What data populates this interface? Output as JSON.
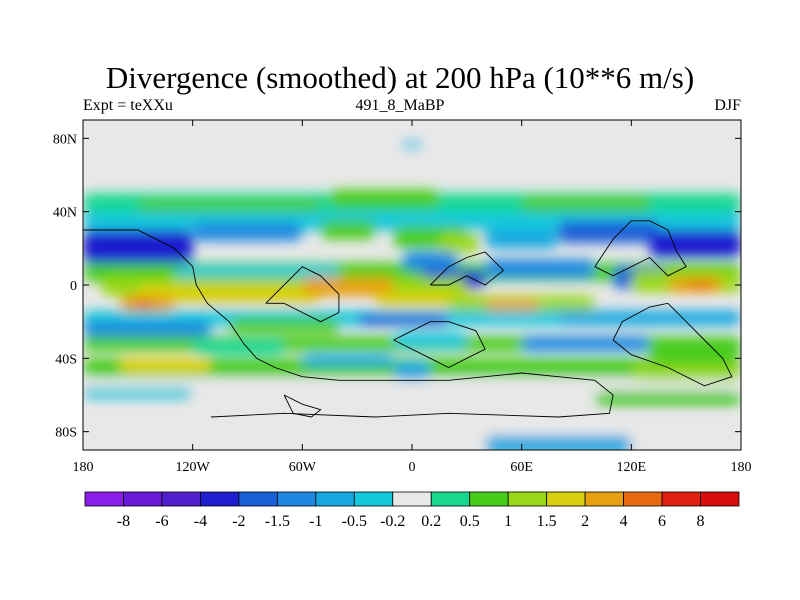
{
  "title": "Divergence (smoothed) at 200 hPa (10**6 m/s)",
  "subtitle_left": "Expt = teXXu",
  "subtitle_center": "491_8_MaBP",
  "subtitle_right": "DJF",
  "chart_data": {
    "type": "heatmap",
    "title": "Divergence (smoothed) at 200 hPa (10**6 m/s)",
    "xlim": [
      -180,
      180
    ],
    "ylim": [
      -90,
      90
    ],
    "x_ticks": [
      {
        "value": -180,
        "label": "180"
      },
      {
        "value": -120,
        "label": "120W"
      },
      {
        "value": -60,
        "label": "60W"
      },
      {
        "value": 0,
        "label": "0"
      },
      {
        "value": 60,
        "label": "60E"
      },
      {
        "value": 120,
        "label": "120E"
      },
      {
        "value": 180,
        "label": "180"
      }
    ],
    "y_ticks": [
      {
        "value": 80,
        "label": "80N"
      },
      {
        "value": 40,
        "label": "40N"
      },
      {
        "value": 0,
        "label": "0"
      },
      {
        "value": -40,
        "label": "40S"
      },
      {
        "value": -80,
        "label": "80S"
      }
    ],
    "colorbar": {
      "levels": [
        "-8",
        "-6",
        "-4",
        "-2",
        "-1.5",
        "-1",
        "-0.5",
        "-0.2",
        "0.2",
        "0.5",
        "1",
        "1.5",
        "2",
        "4",
        "6",
        "8"
      ],
      "colors": [
        "#8a1ee8",
        "#6a18d8",
        "#5020cc",
        "#1e1ecf",
        "#1a5ed8",
        "#1e88e0",
        "#18a8e0",
        "#16c8dc",
        "#e8e8e8",
        "#18d890",
        "#48cc1a",
        "#98d818",
        "#d8d00e",
        "#e8a010",
        "#e86a10",
        "#e02010",
        "#d80c0c"
      ]
    },
    "regions": [
      {
        "lon": -180,
        "lat": 50,
        "w": 360,
        "h": 10,
        "v": 0.4
      },
      {
        "lon": -150,
        "lat": 46,
        "w": 100,
        "h": 10,
        "v": 0.8
      },
      {
        "lon": -45,
        "lat": 52,
        "w": 60,
        "h": 10,
        "v": 0.9
      },
      {
        "lon": 60,
        "lat": 48,
        "w": 70,
        "h": 10,
        "v": 0.7
      },
      {
        "lon": -180,
        "lat": 40,
        "w": 360,
        "h": 10,
        "v": -0.3
      },
      {
        "lon": -180,
        "lat": 30,
        "w": 60,
        "h": 18,
        "v": -2.5
      },
      {
        "lon": -120,
        "lat": 34,
        "w": 60,
        "h": 10,
        "v": -1.2
      },
      {
        "lon": -50,
        "lat": 35,
        "w": 30,
        "h": 10,
        "v": 0.8
      },
      {
        "lon": -10,
        "lat": 32,
        "w": 40,
        "h": 12,
        "v": 0.6
      },
      {
        "lon": 15,
        "lat": 28,
        "w": 22,
        "h": 10,
        "v": 1.2
      },
      {
        "lon": 40,
        "lat": 30,
        "w": 40,
        "h": 10,
        "v": -0.6
      },
      {
        "lon": 80,
        "lat": 35,
        "w": 55,
        "h": 12,
        "v": -1.8
      },
      {
        "lon": 130,
        "lat": 30,
        "w": 50,
        "h": 15,
        "v": -2.5
      },
      {
        "lon": -180,
        "lat": 12,
        "w": 360,
        "h": 10,
        "v": 0.6
      },
      {
        "lon": -130,
        "lat": 10,
        "w": 90,
        "h": 10,
        "v": -0.4
      },
      {
        "lon": -5,
        "lat": 18,
        "w": 30,
        "h": 10,
        "v": -1.5
      },
      {
        "lon": 5,
        "lat": 8,
        "w": 35,
        "h": 10,
        "v": -3.2
      },
      {
        "lon": 40,
        "lat": 14,
        "w": 60,
        "h": 10,
        "v": -1.2
      },
      {
        "lon": 110,
        "lat": 10,
        "w": 30,
        "h": 12,
        "v": -1.6
      },
      {
        "lon": 120,
        "lat": 8,
        "w": 60,
        "h": 12,
        "v": 1.2
      },
      {
        "lon": 140,
        "lat": 4,
        "w": 30,
        "h": 8,
        "v": 2.5
      },
      {
        "lon": 150,
        "lat": 2,
        "w": 15,
        "h": 4,
        "v": 5.5
      },
      {
        "lon": -170,
        "lat": 4,
        "w": 200,
        "h": 10,
        "v": 1.4
      },
      {
        "lon": -150,
        "lat": 0,
        "w": 100,
        "h": 10,
        "v": 1.8
      },
      {
        "lon": -160,
        "lat": -6,
        "w": 30,
        "h": 8,
        "v": 2.5
      },
      {
        "lon": -152,
        "lat": -8,
        "w": 10,
        "h": 5,
        "v": 5.5
      },
      {
        "lon": -60,
        "lat": 4,
        "w": 50,
        "h": 10,
        "v": 2.6
      },
      {
        "lon": -20,
        "lat": -4,
        "w": 60,
        "h": 8,
        "v": 1.6
      },
      {
        "lon": 20,
        "lat": -6,
        "w": 80,
        "h": 8,
        "v": 1.2
      },
      {
        "lon": 40,
        "lat": -8,
        "w": 30,
        "h": 6,
        "v": 2.4
      },
      {
        "lon": -180,
        "lat": -14,
        "w": 360,
        "h": 8,
        "v": -0.3
      },
      {
        "lon": -180,
        "lat": -20,
        "w": 70,
        "h": 8,
        "v": -1.2
      },
      {
        "lon": -100,
        "lat": -18,
        "w": 60,
        "h": 8,
        "v": 0.6
      },
      {
        "lon": -30,
        "lat": -16,
        "w": 50,
        "h": 6,
        "v": -1.8
      },
      {
        "lon": 80,
        "lat": -14,
        "w": 100,
        "h": 8,
        "v": -0.8
      },
      {
        "lon": -180,
        "lat": -28,
        "w": 360,
        "h": 8,
        "v": 0.7
      },
      {
        "lon": -120,
        "lat": -30,
        "w": 50,
        "h": 8,
        "v": 0.4
      },
      {
        "lon": -10,
        "lat": -26,
        "w": 40,
        "h": 8,
        "v": -0.4
      },
      {
        "lon": 60,
        "lat": -28,
        "w": 70,
        "h": 8,
        "v": -1.1
      },
      {
        "lon": 130,
        "lat": -30,
        "w": 50,
        "h": 10,
        "v": 0.6
      },
      {
        "lon": -180,
        "lat": -40,
        "w": 360,
        "h": 10,
        "v": 0.5
      },
      {
        "lon": -160,
        "lat": -40,
        "w": 50,
        "h": 8,
        "v": 1.6
      },
      {
        "lon": -60,
        "lat": -38,
        "w": 50,
        "h": 6,
        "v": -0.6
      },
      {
        "lon": -10,
        "lat": -42,
        "w": 20,
        "h": 10,
        "v": -0.8
      },
      {
        "lon": 60,
        "lat": -40,
        "w": 60,
        "h": 8,
        "v": 0.8
      },
      {
        "lon": 120,
        "lat": -44,
        "w": 60,
        "h": 8,
        "v": 1.1
      },
      {
        "lon": -180,
        "lat": -52,
        "w": 360,
        "h": 10,
        "v": 0.0
      },
      {
        "lon": -180,
        "lat": -56,
        "w": 60,
        "h": 6,
        "v": -0.4
      },
      {
        "lon": 100,
        "lat": -58,
        "w": 80,
        "h": 8,
        "v": 0.6
      },
      {
        "lon": -180,
        "lat": -72,
        "w": 360,
        "h": 18,
        "v": 0.0
      },
      {
        "lon": 40,
        "lat": -82,
        "w": 80,
        "h": 10,
        "v": -0.8
      },
      {
        "lon": -5,
        "lat": 78,
        "w": 10,
        "h": 3,
        "v": -0.6
      }
    ]
  },
  "map": {
    "coastlines": [
      [
        [
          -180,
          30
        ],
        [
          -150,
          30
        ],
        [
          -130,
          20
        ],
        [
          -120,
          10
        ],
        [
          -118,
          0
        ],
        [
          -112,
          -10
        ],
        [
          -100,
          -20
        ],
        [
          -92,
          -32
        ],
        [
          -85,
          -40
        ],
        [
          -75,
          -45
        ],
        [
          -60,
          -50
        ],
        [
          -40,
          -52
        ],
        [
          -20,
          -52
        ],
        [
          20,
          -52
        ],
        [
          60,
          -48
        ],
        [
          80,
          -50
        ],
        [
          100,
          -52
        ],
        [
          110,
          -60
        ],
        [
          108,
          -70
        ],
        [
          80,
          -72
        ],
        [
          20,
          -70
        ],
        [
          -20,
          -72
        ],
        [
          -70,
          -70
        ],
        [
          -110,
          -72
        ]
      ],
      [
        [
          -80,
          -10
        ],
        [
          -70,
          0
        ],
        [
          -60,
          10
        ],
        [
          -50,
          5
        ],
        [
          -40,
          -5
        ],
        [
          -40,
          -15
        ],
        [
          -50,
          -20
        ],
        [
          -60,
          -15
        ],
        [
          -70,
          -10
        ],
        [
          -80,
          -10
        ]
      ],
      [
        [
          -10,
          -30
        ],
        [
          0,
          -35
        ],
        [
          10,
          -40
        ],
        [
          20,
          -45
        ],
        [
          30,
          -40
        ],
        [
          40,
          -35
        ],
        [
          35,
          -25
        ],
        [
          20,
          -20
        ],
        [
          10,
          -20
        ],
        [
          0,
          -25
        ],
        [
          -10,
          -30
        ]
      ],
      [
        [
          10,
          0
        ],
        [
          20,
          10
        ],
        [
          30,
          15
        ],
        [
          40,
          18
        ],
        [
          50,
          8
        ],
        [
          40,
          0
        ],
        [
          30,
          5
        ],
        [
          20,
          0
        ],
        [
          10,
          0
        ]
      ],
      [
        [
          100,
          10
        ],
        [
          110,
          25
        ],
        [
          120,
          35
        ],
        [
          130,
          35
        ],
        [
          140,
          30
        ],
        [
          145,
          18
        ],
        [
          150,
          10
        ],
        [
          140,
          5
        ],
        [
          130,
          15
        ],
        [
          120,
          10
        ],
        [
          110,
          5
        ],
        [
          100,
          10
        ]
      ],
      [
        [
          140,
          -10
        ],
        [
          150,
          -20
        ],
        [
          160,
          -30
        ],
        [
          170,
          -40
        ],
        [
          175,
          -50
        ],
        [
          160,
          -55
        ],
        [
          140,
          -45
        ],
        [
          120,
          -38
        ],
        [
          110,
          -30
        ],
        [
          115,
          -20
        ],
        [
          130,
          -12
        ],
        [
          140,
          -10
        ]
      ],
      [
        [
          -70,
          -60
        ],
        [
          -60,
          -65
        ],
        [
          -50,
          -68
        ],
        [
          -55,
          -72
        ],
        [
          -65,
          -70
        ],
        [
          -70,
          -60
        ]
      ]
    ]
  }
}
